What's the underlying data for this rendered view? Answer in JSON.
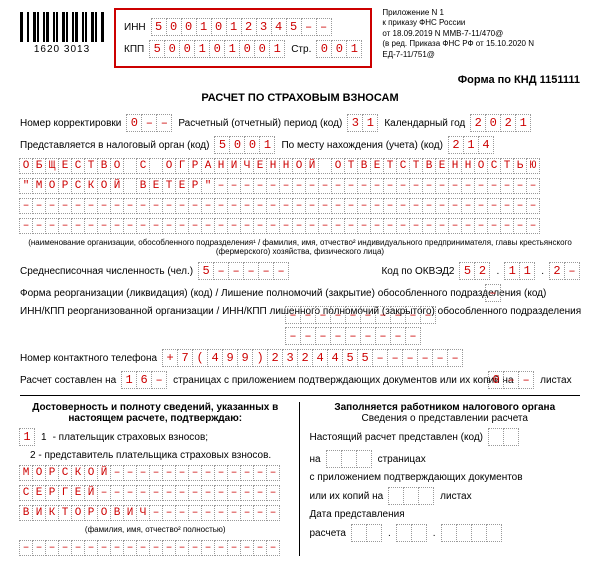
{
  "header": {
    "inn_label": "ИНН",
    "kpp_label": "КПП",
    "page_label": "Стр.",
    "inn": [
      "5",
      "0",
      "0",
      "1",
      "0",
      "1",
      "2",
      "3",
      "4",
      "5",
      "–",
      "–"
    ],
    "kpp": [
      "5",
      "0",
      "0",
      "1",
      "0",
      "1",
      "0",
      "0",
      "1"
    ],
    "page": [
      "0",
      "0",
      "1"
    ],
    "barcode": "1620 3013",
    "notes_l1": "Приложение N 1",
    "notes_l2": "к приказу ФНС России",
    "notes_l3": "от 18.09.2019 N MMB-7-11/470@",
    "notes_l4": "(в ред. Приказа ФНС РФ от 15.10.2020 N",
    "notes_l5": "ЕД-7-11/751@"
  },
  "form_code": "Форма по КНД 1151111",
  "title": "РАСЧЕТ ПО СТРАХОВЫМ ВЗНОСАМ",
  "row1": {
    "corr_label": "Номер корректировки",
    "corr": [
      "0",
      "–",
      "–"
    ],
    "period_label": "Расчетный (отчетный) период (код)",
    "period": [
      "3",
      "1"
    ],
    "year_label": "Календарный год",
    "year": [
      "2",
      "0",
      "2",
      "1"
    ]
  },
  "row2": {
    "tax_label": "Представляется в налоговый орган (код)",
    "tax": [
      "5",
      "0",
      "0",
      "1"
    ],
    "place_label": "По месту нахождения (учета) (код)",
    "place": [
      "2",
      "1",
      "4"
    ]
  },
  "org_name": {
    "line1": [
      "О",
      "Б",
      "Щ",
      "Е",
      "С",
      "Т",
      "В",
      "О",
      "",
      "С",
      "",
      "О",
      "Г",
      "Р",
      "А",
      "Н",
      "И",
      "Ч",
      "Е",
      "Н",
      "Н",
      "О",
      "Й",
      "",
      "О",
      "Т",
      "В",
      "Е",
      "Т",
      "С",
      "Т",
      "В",
      "Е",
      "Н",
      "Н",
      "О",
      "С",
      "Т",
      "Ь",
      "Ю"
    ],
    "line2": [
      "\"",
      "М",
      "О",
      "Р",
      "С",
      "К",
      "О",
      "Й",
      "",
      "В",
      "Е",
      "Т",
      "Е",
      "Р",
      "\"",
      "–",
      "–",
      "–",
      "–",
      "–",
      "–",
      "–",
      "–",
      "–",
      "–",
      "–",
      "–",
      "–",
      "–",
      "–",
      "–",
      "–",
      "–",
      "–",
      "–",
      "–",
      "–",
      "–",
      "–",
      "–"
    ],
    "line3": [
      "–",
      "–",
      "–",
      "–",
      "–",
      "–",
      "–",
      "–",
      "–",
      "–",
      "–",
      "–",
      "–",
      "–",
      "–",
      "–",
      "–",
      "–",
      "–",
      "–",
      "–",
      "–",
      "–",
      "–",
      "–",
      "–",
      "–",
      "–",
      "–",
      "–",
      "–",
      "–",
      "–",
      "–",
      "–",
      "–",
      "–",
      "–",
      "–",
      "–"
    ],
    "line4": [
      "–",
      "–",
      "–",
      "–",
      "–",
      "–",
      "–",
      "–",
      "–",
      "–",
      "–",
      "–",
      "–",
      "–",
      "–",
      "–",
      "–",
      "–",
      "–",
      "–",
      "–",
      "–",
      "–",
      "–",
      "–",
      "–",
      "–",
      "–",
      "–",
      "–",
      "–",
      "–",
      "–",
      "–",
      "–",
      "–",
      "–",
      "–",
      "–",
      "–"
    ]
  },
  "org_note": "(наименование организации, обособленного подразделения¹ / фамилия, имя, отчество² индивидуального предпринимателя, главы крестьянского (фермерского) хозяйства, физического лица)",
  "row3": {
    "count_label": "Среднесписочная численность (чел.)",
    "count": [
      "5",
      "–",
      "–",
      "–",
      "–",
      "–"
    ],
    "okved_label": "Код по ОКВЭД2",
    "okved_a": [
      "5",
      "2"
    ],
    "okved_b": [
      "1",
      "1"
    ],
    "okved_c": [
      "2",
      "–"
    ]
  },
  "row4": {
    "reorg_label": "Форма реорганизации (ликвидация) (код) / Лишение полномочий (закрытие) обособленного подразделения (код)",
    "reorg": [
      "–"
    ]
  },
  "row5": {
    "innkpp_label": "ИНН/КПП реорганизованной организации / ИНН/КПП лишенного полномочий (закрытого) обособленного подразделения",
    "top": [
      "–",
      "–",
      "–",
      "–",
      "–",
      "–",
      "–",
      "–",
      "–",
      "–"
    ],
    "bot": [
      "–",
      "–",
      "–",
      "–",
      "–",
      "–",
      "–",
      "–",
      "–"
    ]
  },
  "row6": {
    "phone_label": "Номер контактного телефона",
    "phone": [
      "+",
      "7",
      "(",
      "4",
      "9",
      "9",
      ")",
      "2",
      "3",
      "2",
      "4",
      "4",
      "5",
      "5",
      "–",
      "–",
      "–",
      "–",
      "–",
      "–"
    ]
  },
  "row7": {
    "p1": "Расчет составлен на",
    "pages": [
      "1",
      "6",
      "–"
    ],
    "p2": "страницах с приложением подтверждающих документов или их копий на",
    "sheets": [
      "0",
      "–",
      "–"
    ],
    "p3": "листах"
  },
  "bottom": {
    "left_title": "Достоверность и полноту сведений, указанных в настоящем расчете, подтверждаю:",
    "confirmer": [
      "1"
    ],
    "opt1": "- плательщик страховых взносов;",
    "opt2": "- представитель плательщика страховых взносов.",
    "name1": [
      "М",
      "О",
      "Р",
      "С",
      "К",
      "О",
      "Й",
      "–",
      "–",
      "–",
      "–",
      "–",
      "–",
      "–",
      "–",
      "–",
      "–",
      "–",
      "–",
      "–"
    ],
    "name2": [
      "С",
      "Е",
      "Р",
      "Г",
      "Е",
      "Й",
      "–",
      "–",
      "–",
      "–",
      "–",
      "–",
      "–",
      "–",
      "–",
      "–",
      "–",
      "–",
      "–",
      "–"
    ],
    "name3": [
      "В",
      "И",
      "К",
      "Т",
      "О",
      "Р",
      "О",
      "В",
      "И",
      "Ч",
      "–",
      "–",
      "–",
      "–",
      "–",
      "–",
      "–",
      "–",
      "–",
      "–"
    ],
    "fio_note": "(фамилия, имя, отчество² полностью)",
    "extra": [
      "–",
      "–",
      "–",
      "–",
      "–",
      "–",
      "–",
      "–",
      "–",
      "–",
      "–",
      "–",
      "–",
      "–",
      "–",
      "–",
      "–",
      "–",
      "–",
      "–"
    ],
    "right_title": "Заполняется работником налогового органа",
    "right_sub": "Сведения о представлении расчета",
    "r1": "Настоящий расчет представлен (код)",
    "r1_cells": [
      "",
      ""
    ],
    "r2a": "на",
    "r2_cells": [
      "",
      "",
      ""
    ],
    "r2b": "страницах",
    "r3": "с приложением подтверждающих документов",
    "r4a": "или их копий на",
    "r4_cells": [
      "",
      "",
      ""
    ],
    "r4b": "листах",
    "r5": "Дата представления",
    "r6": "расчета",
    "r6_a": [
      "",
      ""
    ],
    "r6_b": [
      "",
      ""
    ],
    "r6_c": [
      "",
      "",
      "",
      ""
    ]
  }
}
